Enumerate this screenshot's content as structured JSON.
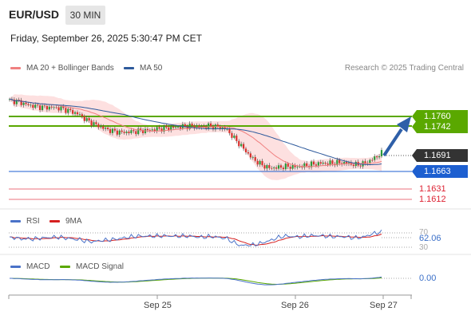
{
  "header": {
    "symbol": "EUR/USD",
    "timeframe": "30 MIN",
    "datetime": "Friday, September 26, 2025 5:30:47 PM CET"
  },
  "main_legend": {
    "ma20_label": "MA 20 + Bollinger Bands",
    "ma50_label": "MA 50",
    "ma20_color": "#f08080",
    "ma50_color": "#2e5a9c",
    "credit": "Research © 2025 Trading Central"
  },
  "price_tags": {
    "resistance_1": "1.1760",
    "resistance_2": "1.1742",
    "current": "1.1691",
    "pivot": "1.1663",
    "support_1": "1.1631",
    "support_2": "1.1612",
    "resistance_color": "#5aa800",
    "pivot_color": "#1d5fd0",
    "support_color": "#e04050",
    "current_color": "#333333"
  },
  "rsi_panel": {
    "rsi_label": "RSI",
    "ma_label": "9MA",
    "value": "62.06",
    "level_70": "70",
    "level_30": "30",
    "rsi_color": "#4a72c8",
    "ma_color": "#d62020"
  },
  "macd_panel": {
    "macd_label": "MACD",
    "signal_label": "MACD Signal",
    "value": "0.00",
    "macd_color": "#4a72c8",
    "signal_color": "#5aa800"
  },
  "x_axis": {
    "labels": [
      "Sep 25",
      "Sep 26",
      "Sep 27"
    ]
  },
  "chart_data": {
    "type": "candlestick",
    "instrument": "EUR/USD",
    "interval": "30 MIN",
    "ylim": [
      1.16,
      1.18
    ],
    "levels": {
      "resistance": [
        1.176,
        1.1742
      ],
      "pivot": 1.1663,
      "support": [
        1.1631,
        1.1612
      ],
      "last": 1.1691
    },
    "close_path": [
      1.179,
      1.1788,
      1.1782,
      1.1779,
      1.1777,
      1.1777,
      1.1775,
      1.177,
      1.1764,
      1.1752,
      1.1744,
      1.1737,
      1.1732,
      1.173,
      1.1731,
      1.1733,
      1.1734,
      1.1736,
      1.1738,
      1.1739,
      1.1741,
      1.1742,
      1.174,
      1.1742,
      1.174,
      1.1737,
      1.1718,
      1.17,
      1.1682,
      1.167,
      1.1663,
      1.1664,
      1.1666,
      1.1665,
      1.1667,
      1.167,
      1.1672,
      1.1672,
      1.1673,
      1.1672,
      1.1669,
      1.1671,
      1.168,
      1.1691
    ]
  }
}
